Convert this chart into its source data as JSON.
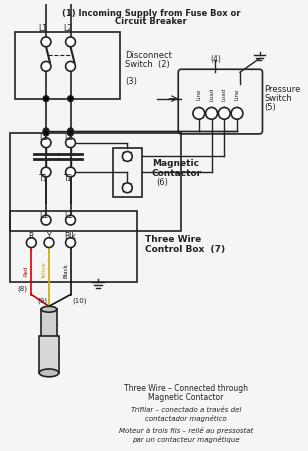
{
  "title_line1": "(1) Incoming Supply from Fuse Box or",
  "title_line2": "Circuit Breaker",
  "bg_color": "#f5f5f5",
  "line_color": "#222222",
  "text_color": "#222222",
  "fig_width": 3.08,
  "fig_height": 4.52,
  "dpi": 100,
  "bottom_text_en1": "Three Wire – Connected through",
  "bottom_text_en2": "Magnetic Contactor",
  "bottom_text_es1": "Trifilar – conectado a través del",
  "bottom_text_es2": "contactador magnético",
  "bottom_text_fr1": "Moteur à trois fils – relié au pressostat",
  "bottom_text_fr2": "par un contacteur magnétique"
}
